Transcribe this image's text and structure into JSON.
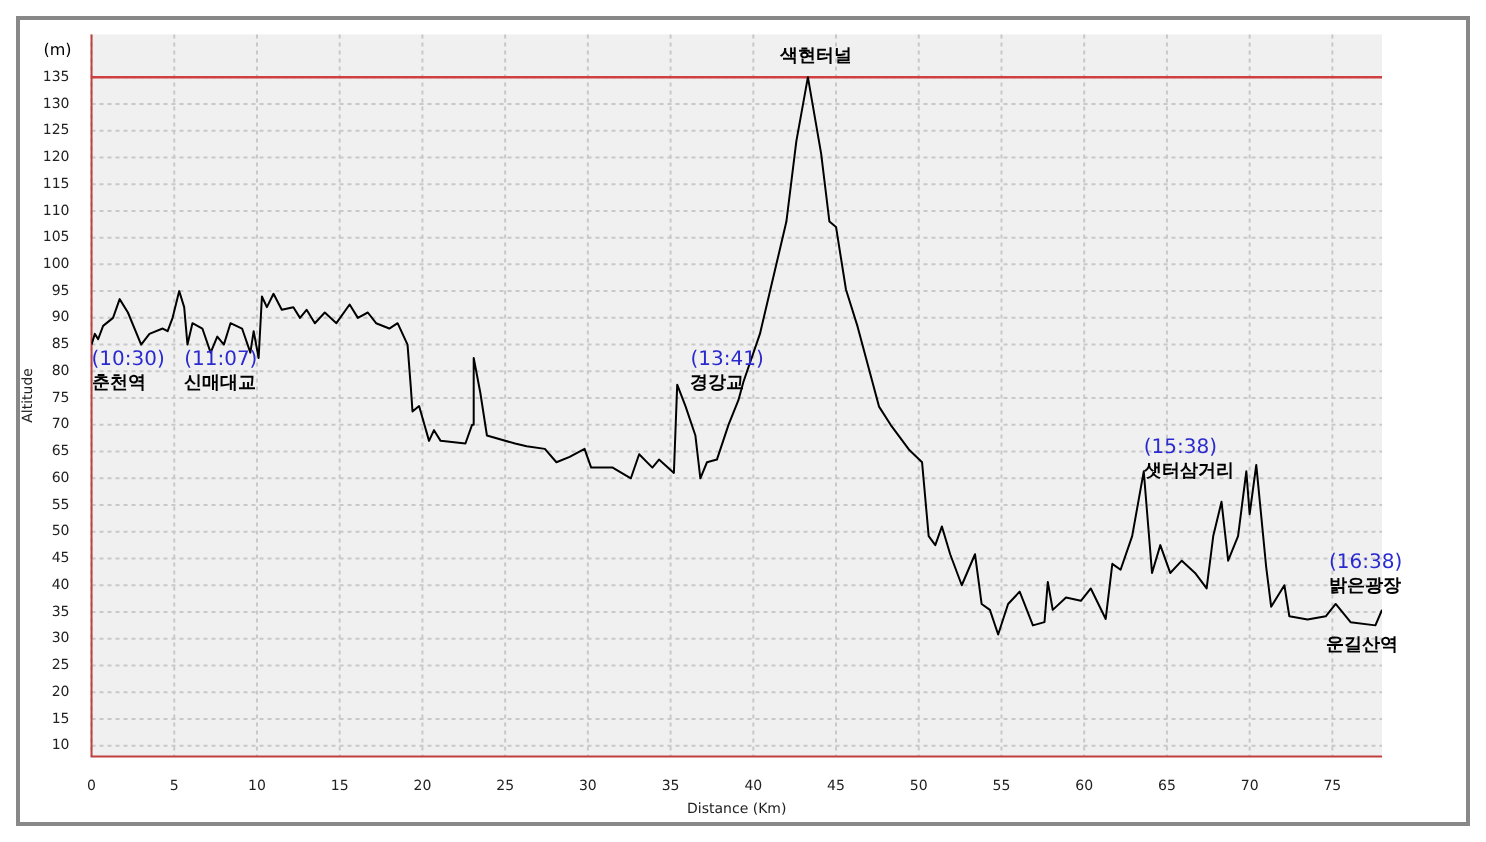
{
  "chart_data": {
    "type": "line",
    "xlabel": "Distance (Km)",
    "ylabel": "Altitude",
    "x": [
      0,
      0.2,
      0.4,
      0.7,
      1.3,
      1.7,
      2.2,
      3,
      3.5,
      4.3,
      4.6,
      4.9,
      5.3,
      5.6,
      5.8,
      6.1,
      6.7,
      7.2,
      7.6,
      8,
      8.4,
      9.1,
      9.6,
      9.8,
      10.1,
      10.3,
      10.6,
      11,
      11.5,
      12.2,
      12.6,
      13,
      13.5,
      14.1,
      14.8,
      15.6,
      16.1,
      16.7,
      17.2,
      18,
      18.5,
      19.1,
      19.3,
      19.4,
      19.8,
      20.4,
      20.7,
      21.1,
      22.6,
      23,
      23.1,
      23.5,
      23.9,
      25.6,
      26.3,
      27.4,
      28.1,
      28.9,
      29.8,
      30.2,
      31.5,
      32.6,
      33.1,
      33.9,
      34.3,
      35.2,
      35.4,
      35.9,
      36.5,
      36.8,
      37.2,
      37.8,
      38.5,
      39.1,
      39.4,
      40.4,
      41.3,
      42,
      42.6,
      43.3,
      44.1,
      44.6,
      45,
      45.6,
      46.3,
      47.2,
      47.6,
      48.3,
      49.4,
      50.2,
      50.6,
      51,
      51.4,
      51.9,
      52.6,
      53.4,
      53.8,
      54.3,
      54.8,
      55.4,
      56.1,
      56.9,
      57.6,
      57.8,
      58.1,
      58.9,
      59.8,
      60.4,
      61.3,
      61.7,
      62.2,
      62.9,
      63.6,
      64.1,
      64.6,
      65.2,
      65.9,
      66.7,
      67.4,
      67.8,
      68.3,
      68.7,
      69.3,
      69.8,
      70,
      70.4,
      71,
      71.3,
      72.1,
      72.4,
      73.5,
      74.6,
      75.2,
      76.1,
      77.6,
      78
    ],
    "series": [
      {
        "color": "#000000",
        "values": [
          85,
          87,
          86,
          88.5,
          90,
          93.5,
          91,
          85,
          87,
          88,
          87.5,
          90,
          95,
          92,
          85,
          89,
          88,
          83.5,
          86.5,
          85,
          89,
          88,
          83.5,
          87.5,
          82.5,
          94,
          92,
          94.5,
          91.5,
          92,
          90,
          91.5,
          89,
          91,
          89,
          92.5,
          90,
          91,
          89,
          88,
          89,
          85,
          77,
          72.5,
          73.5,
          67,
          69,
          67,
          66.5,
          70,
          82.5,
          76,
          68,
          66.5,
          66,
          65.5,
          63,
          64,
          65.5,
          62,
          62,
          60,
          64.5,
          62,
          63.5,
          61,
          77.5,
          73.5,
          68,
          60,
          63,
          63.5,
          70,
          74.6,
          78,
          87,
          98.8,
          108,
          123,
          135,
          120.7,
          108,
          107,
          95.3,
          88.4,
          78,
          73.4,
          70,
          65.4,
          63,
          49.2,
          47.5,
          51,
          45.8,
          40,
          45.8,
          36.5,
          35.4,
          30.8,
          36.5,
          38.8,
          32.5,
          33.1,
          40.6,
          35.4,
          37.7,
          37.1,
          39.4,
          33.7,
          44,
          42.9,
          49.2,
          61.3,
          42.3,
          47.5,
          42.3,
          44.6,
          42.3,
          39.4,
          49.2,
          55.6,
          44.6,
          49.2,
          61.3,
          53.3,
          62.5,
          43.4,
          36,
          40,
          34.2,
          33.6,
          34.2,
          36.5,
          33.1,
          32.5,
          35.4
        ]
      }
    ],
    "xlim": [
      0,
      78
    ],
    "xticks": [
      0,
      5,
      10,
      15,
      20,
      25,
      30,
      35,
      40,
      45,
      50,
      55,
      60,
      65,
      70,
      75
    ],
    "ylim": [
      8,
      143
    ],
    "yticks": [
      10,
      15,
      20,
      25,
      30,
      35,
      40,
      45,
      50,
      55,
      60,
      65,
      70,
      75,
      80,
      85,
      90,
      95,
      100,
      105,
      110,
      115,
      120,
      125,
      130,
      135
    ],
    "grid": true,
    "marker": "none",
    "line_style": "solid",
    "ref_lines": [
      {
        "axis": "y",
        "value": 135,
        "color": "#d04040"
      }
    ],
    "annotations": [
      "(m)",
      "(10:30)\n춘천역",
      "(11:07)\n신매대교",
      "(13:41)\n경강교",
      "색현터널",
      "(15:38)\n샛터삼거리",
      "(16:38)\n밝은광장",
      "운길산역"
    ]
  }
}
